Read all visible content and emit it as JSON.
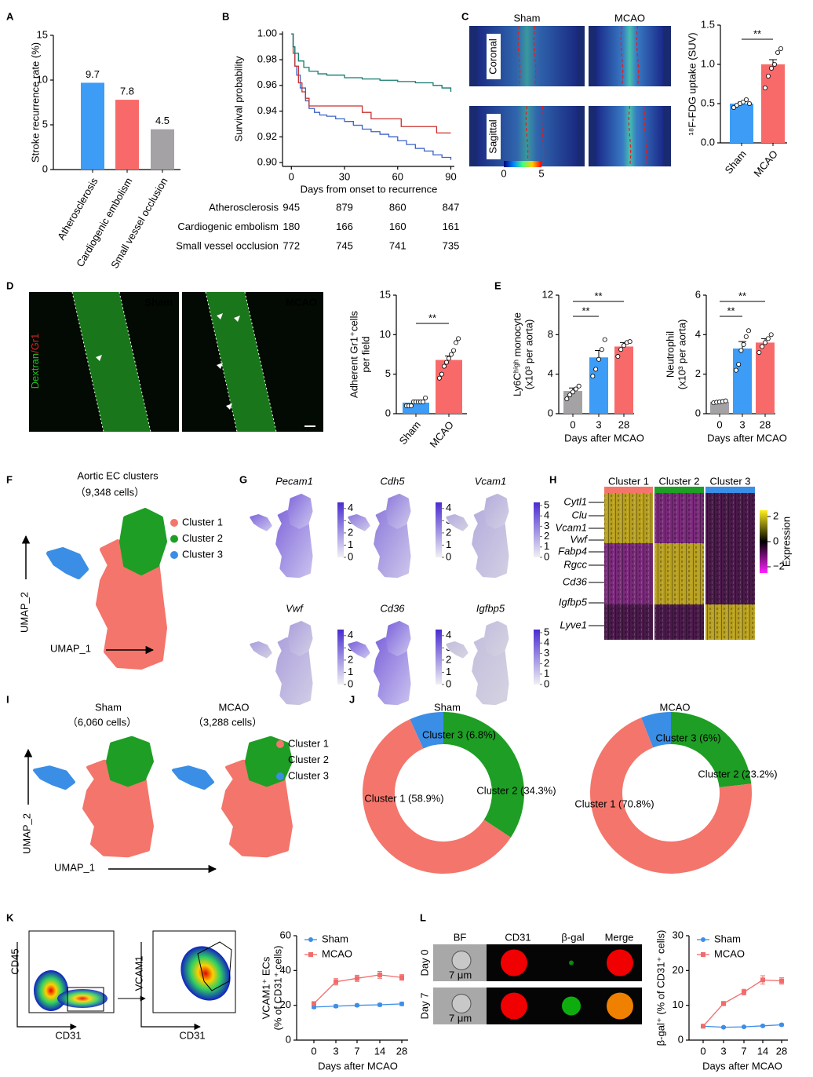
{
  "letters": [
    "A",
    "B",
    "C",
    "D",
    "E",
    "F",
    "G",
    "H",
    "I",
    "J",
    "K",
    "L"
  ],
  "A": {
    "type": "bar",
    "ylabel": [
      "Stroke recurrence rate (%)"
    ],
    "categories": [
      "Atherosclerosis",
      "Cardiogenic embolism",
      "Small vessel occlusion"
    ],
    "values": [
      9.7,
      7.8,
      4.5
    ],
    "colors": [
      "#3d9cf5",
      "#f86a6a",
      "#a5a2a6"
    ],
    "ylim": [
      0,
      15
    ],
    "yticks": [
      0,
      5,
      10,
      15
    ]
  },
  "B": {
    "type": "step",
    "ylabel": [
      "Survival probability"
    ],
    "xlabel": "Days from onset to recurrence",
    "xlim": [
      -5,
      92
    ],
    "xticks": [
      0,
      30,
      60,
      90
    ],
    "ylim": [
      0.897,
      1.002
    ],
    "yticks": [
      {
        "value": 0.9,
        "label": "0.90"
      },
      0.92,
      0.94,
      0.96,
      0.98,
      {
        "value": 1,
        "label": "1.00"
      }
    ],
    "series": [
      {
        "name": "Atherosclerosis",
        "color": "#3b62c9",
        "x": [
          0,
          1,
          2,
          3,
          5,
          8,
          10,
          13,
          16,
          20,
          25,
          30,
          35,
          40,
          45,
          50,
          55,
          60,
          65,
          70,
          75,
          80,
          85,
          90
        ],
        "values": [
          1,
          0.99,
          0.975,
          0.968,
          0.958,
          0.948,
          0.942,
          0.939,
          0.937,
          0.936,
          0.934,
          0.932,
          0.929,
          0.926,
          0.924,
          0.922,
          0.92,
          0.917,
          0.914,
          0.911,
          0.909,
          0.906,
          0.904,
          0.902
        ]
      },
      {
        "name": "Cardiogenic embolism",
        "color": "#c9302c",
        "x": [
          0,
          1,
          2,
          4,
          6,
          8,
          10,
          40,
          45,
          50,
          62,
          82,
          90
        ],
        "values": [
          1,
          0.985,
          0.975,
          0.962,
          0.955,
          0.95,
          0.944,
          0.939,
          0.934,
          0.934,
          0.928,
          0.923,
          0.923
        ]
      },
      {
        "name": "Small vessel occlusion",
        "color": "#137a6f",
        "x": [
          0,
          1,
          2,
          4,
          7,
          10,
          15,
          20,
          30,
          40,
          50,
          60,
          70,
          80,
          85,
          90
        ],
        "values": [
          1,
          0.99,
          0.985,
          0.979,
          0.974,
          0.971,
          0.969,
          0.968,
          0.966,
          0.965,
          0.964,
          0.963,
          0.962,
          0.96,
          0.958,
          0.955
        ]
      }
    ],
    "risk_table": [
      {
        "name": "Atherosclerosis",
        "color": "#3b62c9",
        "counts": [
          945,
          879,
          860,
          847
        ]
      },
      {
        "name": "Cardiogenic embolism",
        "color": "#c9302c",
        "counts": [
          180,
          166,
          160,
          161
        ]
      },
      {
        "name": "Small vessel occlusion",
        "color": "#137a6f",
        "counts": [
          772,
          745,
          741,
          735
        ]
      }
    ]
  },
  "C": {
    "images": {
      "columns": [
        "Sham",
        "MCAO"
      ],
      "rows": [
        "Coronal",
        "Sagittal"
      ],
      "colorbar_ticks": [
        0,
        5
      ]
    },
    "chart": {
      "type": "bar",
      "ylabel": [
        "¹⁸F-FDG uptake (SUV)"
      ],
      "categories": [
        "Sham",
        "MCAO"
      ],
      "values": [
        0.5,
        1.0
      ],
      "errors": [
        0.02,
        0.06
      ],
      "colors": [
        "#3d9cf5",
        "#f86a6a"
      ],
      "points": [
        [
          0.45,
          0.48,
          0.5,
          0.52,
          0.55,
          0.5
        ],
        [
          0.7,
          0.85,
          0.95,
          1.0,
          1.15,
          1.2
        ]
      ],
      "ylim": [
        0,
        1.5
      ],
      "yticks": [
        {
          "value": 0,
          "label": "0.0"
        },
        0.5,
        {
          "value": 1,
          "label": "1.0"
        },
        1.5
      ],
      "significance": [
        "**"
      ]
    }
  },
  "D": {
    "images": {
      "columns": [
        "Sham",
        "MCAO"
      ],
      "stain": [
        "Dextran",
        "/Gr1"
      ]
    },
    "chart": {
      "type": "bar",
      "ylabel": [
        "Adherent Gr1⁺cells",
        "per field"
      ],
      "categories": [
        "Sham",
        "MCAO"
      ],
      "values": [
        1.4,
        6.8
      ],
      "errors": [
        0.15,
        0.5
      ],
      "colors": [
        "#3d9cf5",
        "#f86a6a"
      ],
      "points": [
        [
          1,
          1,
          1,
          1.5,
          1.5,
          1.5,
          1.5,
          1.5,
          2
        ],
        [
          4.5,
          5,
          6,
          6.5,
          7,
          7.5,
          8,
          9,
          9.5
        ]
      ],
      "ylim": [
        0,
        15
      ],
      "yticks": [
        0,
        5,
        10,
        15
      ],
      "significance": [
        "**"
      ]
    }
  },
  "E": [
    {
      "type": "bar",
      "ylabel": [
        "Ly6Cʰⁱᵍʰ monocyte",
        "(x10³ per aorta)"
      ],
      "xlabel": "Days after MCAO",
      "categories": [
        "0",
        "3",
        "28"
      ],
      "values": [
        2.3,
        5.7,
        6.8
      ],
      "errors": [
        0.3,
        0.7,
        0.4
      ],
      "colors": [
        "#a5a2a6",
        "#3d9cf5",
        "#f86a6a"
      ],
      "points": [
        [
          1.5,
          1.9,
          2.2,
          2.5,
          2.8
        ],
        [
          3.8,
          4.5,
          5.5,
          6.5,
          7.5
        ],
        [
          5.8,
          6.5,
          6.9,
          7.2,
          7.3
        ]
      ],
      "ylim": [
        0,
        12
      ],
      "yticks": [
        0,
        4,
        8,
        12
      ],
      "significance": [
        "**",
        "**"
      ]
    },
    {
      "type": "bar",
      "ylabel": [
        "Neutrophil",
        "(x10³ per aorta)"
      ],
      "xlabel": "Days after MCAO",
      "categories": [
        "0",
        "3",
        "28"
      ],
      "values": [
        0.6,
        3.3,
        3.6
      ],
      "errors": [
        0.04,
        0.35,
        0.2
      ],
      "colors": [
        "#a5a2a6",
        "#3d9cf5",
        "#f86a6a"
      ],
      "points": [
        [
          0.55,
          0.58,
          0.6,
          0.62,
          0.65
        ],
        [
          2.2,
          2.5,
          3.2,
          3.5,
          3.9,
          4.2
        ],
        [
          3.1,
          3.4,
          3.6,
          3.8,
          4.0
        ]
      ],
      "ylim": [
        0,
        6
      ],
      "yticks": [
        0,
        2,
        4,
        6
      ],
      "significance": [
        "**",
        "**"
      ]
    }
  ],
  "F": {
    "title": "Aortic EC clusters",
    "subtitle": "（9,348 cells）",
    "legend": [
      {
        "name": "Cluster 1",
        "color": "#f4756b"
      },
      {
        "name": "Cluster 2",
        "color": "#1e9e24"
      },
      {
        "name": "Cluster 3",
        "color": "#3a8ee6"
      }
    ],
    "xlabel": "UMAP_1",
    "ylabel": "UMAP_2"
  },
  "G": {
    "genes": [
      {
        "name": "Pecam1",
        "lim": [
          0,
          4.5
        ],
        "ticks": [
          0,
          1,
          2,
          3,
          4
        ]
      },
      {
        "name": "Cdh5",
        "lim": [
          0,
          4.5
        ],
        "ticks": [
          0,
          1,
          2,
          3,
          4
        ]
      },
      {
        "name": "Vcam1",
        "lim": [
          0,
          5.3
        ],
        "ticks": [
          0,
          1,
          2,
          3,
          4,
          5
        ]
      },
      {
        "name": "Vwf",
        "lim": [
          0,
          4.5
        ],
        "ticks": [
          0,
          1,
          2,
          3,
          4
        ]
      },
      {
        "name": "Cd36",
        "lim": [
          0,
          4.5
        ],
        "ticks": [
          0,
          1,
          2,
          3,
          4
        ]
      },
      {
        "name": "Igfbp5",
        "lim": [
          0,
          5.3
        ],
        "ticks": [
          0,
          1,
          2,
          3,
          4,
          5
        ]
      }
    ]
  },
  "H": {
    "clusters": [
      {
        "name": "Cluster 1",
        "color": "#f4756b"
      },
      {
        "name": "Cluster 2",
        "color": "#1e9e24"
      },
      {
        "name": "Cluster 3",
        "color": "#3a8ee6"
      }
    ],
    "genes": [
      "Cytl1",
      "Clu",
      "Vcam1",
      "Vwf",
      "Fabp4",
      "Rgcc",
      "Cd36",
      "Igfbp5",
      "Lyve1"
    ],
    "colorbar": {
      "label": "Expression",
      "lim": [
        -2.5,
        2.5
      ],
      "ticks": [
        2,
        0,
        {
          "value": -2,
          "label": "−2"
        }
      ]
    }
  },
  "I": {
    "groups": [
      {
        "name": "Sham",
        "cells": "（6,060 cells）"
      },
      {
        "name": "MCAO",
        "cells": "（3,288 cells）"
      }
    ],
    "legend": [
      {
        "name": "Cluster 1",
        "color": "#f4756b"
      },
      {
        "name": "Cluster 2",
        "color": "#1e9e24"
      },
      {
        "name": "Cluster 3",
        "color": "#3a8ee6"
      }
    ],
    "xlabel": "UMAP_1",
    "ylabel": "UMAP_2"
  },
  "J": {
    "type": "donut",
    "charts": [
      {
        "title": "Sham",
        "values": [
          58.9,
          34.3,
          6.8
        ],
        "value_labels": [
          "Cluster 1 (58.9%)",
          "Cluster 2 (34.3%)",
          "Cluster 3 (6.8%)"
        ],
        "colors": [
          "#f4756b",
          "#1e9e24",
          "#3a8ee6"
        ]
      },
      {
        "title": "MCAO",
        "values": [
          70.8,
          23.2,
          6
        ],
        "value_labels": [
          "Cluster 1 (70.8%)",
          "Cluster 2 (23.2%)",
          "Cluster 3 (6%)"
        ],
        "colors": [
          "#f4756b",
          "#1e9e24",
          "#3a8ee6"
        ]
      }
    ]
  },
  "K": {
    "flow": [
      {
        "ylabel": "CD45",
        "xlabel": "CD31"
      },
      {
        "ylabel": "VCAM1",
        "xlabel": "CD31"
      }
    ],
    "chart": {
      "type": "line",
      "ylabel": [
        "VCAM1⁺ ECs",
        "(% of CD31⁺ cells)"
      ],
      "xlabel": "Days after MCAO",
      "categories": [
        "0",
        "3",
        "7",
        "14",
        "28"
      ],
      "ylim": [
        0,
        60
      ],
      "yticks": [
        0,
        20,
        40,
        60
      ],
      "legend": "top-left",
      "series": [
        {
          "name": "Sham",
          "color": "#3c8ee8",
          "values": [
            19,
            19.5,
            20,
            20.3,
            20.8
          ],
          "errors": [
            0.8,
            0.8,
            0.7,
            0.8,
            1.0
          ]
        },
        {
          "name": "MCAO",
          "color": "#f26b6b",
          "values": [
            21,
            33.5,
            35.5,
            37.5,
            36
          ],
          "errors": [
            0.8,
            1.8,
            1.8,
            2,
            1.6
          ]
        }
      ]
    }
  },
  "L": {
    "images": {
      "columns": [
        "BF",
        "CD31",
        "β-gal",
        "Merge"
      ],
      "rows": [
        "Day 0",
        "Day 7"
      ],
      "scale": "7 μm"
    },
    "chart": {
      "type": "line",
      "ylabel": [
        "β-gal⁺ (% of CD31⁺ cells)"
      ],
      "xlabel": "Days after MCAO",
      "categories": [
        "0",
        "3",
        "7",
        "14",
        "28"
      ],
      "ylim": [
        0,
        30
      ],
      "yticks": [
        0,
        10,
        20,
        30
      ],
      "legend": "top-left",
      "series": [
        {
          "name": "Sham",
          "color": "#3c8ee8",
          "values": [
            4,
            3.7,
            3.8,
            4.1,
            4.4
          ],
          "errors": [
            0.2,
            0.2,
            0.2,
            0.2,
            0.3
          ]
        },
        {
          "name": "MCAO",
          "color": "#f26b6b",
          "values": [
            4,
            10.5,
            13.8,
            17.3,
            17
          ],
          "errors": [
            0.3,
            0.6,
            0.8,
            1.2,
            0.9
          ]
        }
      ]
    }
  }
}
